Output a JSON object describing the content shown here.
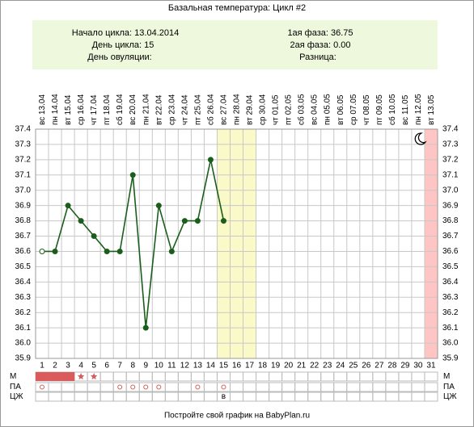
{
  "chart_data": {
    "type": "line",
    "title": "Базальная температура: Цикл #2",
    "info": {
      "cycle_start_label": "Начало цикла:",
      "cycle_start": "13.04.2014",
      "cycle_day_label": "День цикла:",
      "cycle_day": "15",
      "ovulation_label": "День овуляции:",
      "phase1_label": "1ая фаза:",
      "phase1": "36.75",
      "phase2_label": "2ая фаза:",
      "phase2": "0.00",
      "difference_label": "Разница:"
    },
    "weekdays": [
      "вс",
      "пн",
      "вт",
      "ср",
      "чт",
      "пт",
      "сб",
      "вс",
      "пн",
      "вт",
      "ср",
      "чт",
      "пт",
      "сб",
      "вс",
      "пн",
      "вт",
      "ср",
      "чт",
      "пт",
      "сб",
      "вс",
      "пн",
      "вт",
      "ср",
      "чт",
      "пт",
      "сб",
      "вс",
      "пн",
      "вт"
    ],
    "dates": [
      "13.04",
      "14.04",
      "15.04",
      "16.04",
      "17.04",
      "18.04",
      "19.04",
      "20.04",
      "21.04",
      "22.04",
      "23.04",
      "24.04",
      "25.04",
      "26.04",
      "27.04",
      "28.04",
      "29.04",
      "30.04",
      "01.05",
      "02.05",
      "03.05",
      "04.05",
      "05.05",
      "06.05",
      "07.05",
      "08.05",
      "09.05",
      "10.05",
      "11.05",
      "12.05",
      "13.05"
    ],
    "categories": [
      1,
      2,
      3,
      4,
      5,
      6,
      7,
      8,
      9,
      10,
      11,
      12,
      13,
      14,
      15,
      16,
      17,
      18,
      19,
      20,
      21,
      22,
      23,
      24,
      25,
      26,
      27,
      28,
      29,
      30,
      31
    ],
    "values": [
      36.6,
      36.6,
      36.9,
      36.8,
      36.7,
      36.6,
      36.6,
      37.1,
      36.1,
      36.9,
      36.6,
      36.8,
      36.8,
      37.2,
      36.8,
      null,
      null,
      null,
      null,
      null,
      null,
      null,
      null,
      null,
      null,
      null,
      null,
      null,
      null,
      null,
      null
    ],
    "color": "#1b5e1b",
    "ylim": [
      35.9,
      37.4
    ],
    "yticks": [
      {
        "value": 35.9,
        "label": "35.9"
      },
      {
        "value": 36,
        "label": "36.0"
      },
      36.1,
      36.2,
      36.3,
      36.4,
      36.5,
      36.6,
      36.7,
      36.8,
      36.9,
      {
        "value": 37,
        "label": "37.0"
      },
      37.1,
      37.2,
      37.3,
      37.4
    ],
    "grid": true,
    "highlight_days": [
      15,
      16,
      17
    ],
    "highlight_color": "#fafac8",
    "marked_day": 31,
    "marked_color": "#ffc4c4",
    "row_labels": [
      "М",
      "ПА",
      "ЦЖ"
    ],
    "menses_days": [
      1,
      2,
      3
    ],
    "star_days": [
      4,
      5
    ],
    "pa_days": [
      1,
      7,
      8,
      9,
      10,
      13,
      15
    ],
    "cm_marks": [
      {
        "day": 15,
        "label": "в"
      }
    ],
    "footer": "Постройте свой график на BabyPlan.ru"
  }
}
